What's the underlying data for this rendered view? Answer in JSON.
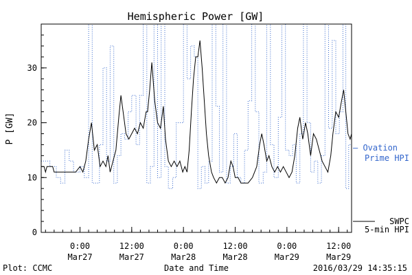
{
  "chart_data": {
    "type": "line",
    "title": "Hemispheric Power [GW]",
    "xlabel": "Date and Time",
    "ylabel": "P [GW]",
    "xlim": [
      "2016-03-26 15:00",
      "2016-03-29 15:00"
    ],
    "ylim": [
      0,
      38
    ],
    "yticks": [
      0,
      10,
      20,
      30
    ],
    "xticks": [
      {
        "time": "2016-03-27 00:00",
        "line1": "0:00",
        "line2": "Mar27"
      },
      {
        "time": "2016-03-27 12:00",
        "line1": "12:00",
        "line2": "Mar27"
      },
      {
        "time": "2016-03-28 00:00",
        "line1": "0:00",
        "line2": "Mar28"
      },
      {
        "time": "2016-03-28 12:00",
        "line1": "12:00",
        "line2": "Mar28"
      },
      {
        "time": "2016-03-29 00:00",
        "line1": "0:00",
        "line2": "Mar29"
      },
      {
        "time": "2016-03-29 12:00",
        "line1": "12:00",
        "line2": "Mar29"
      }
    ],
    "grid": false,
    "series": [
      {
        "name": "Ovation Prime HPI",
        "label_line1": "— Ovation",
        "label_line2": "Prime HPI",
        "style": "dotted-step",
        "color": "#3366cc",
        "points": [
          [
            "2016-03-26 15:00",
            13
          ],
          [
            "2016-03-26 17:00",
            12
          ],
          [
            "2016-03-26 18:30",
            10
          ],
          [
            "2016-03-26 19:30",
            9
          ],
          [
            "2016-03-26 20:30",
            15
          ],
          [
            "2016-03-26 21:30",
            13
          ],
          [
            "2016-03-26 22:30",
            11
          ],
          [
            "2016-03-27 00:00",
            12
          ],
          [
            "2016-03-27 01:00",
            10
          ],
          [
            "2016-03-27 02:00",
            38
          ],
          [
            "2016-03-27 02:50",
            9
          ],
          [
            "2016-03-27 04:30",
            16
          ],
          [
            "2016-03-27 05:20",
            30
          ],
          [
            "2016-03-27 06:10",
            13
          ],
          [
            "2016-03-27 07:00",
            34
          ],
          [
            "2016-03-27 07:50",
            9
          ],
          [
            "2016-03-27 08:40",
            14
          ],
          [
            "2016-03-27 09:30",
            18
          ],
          [
            "2016-03-27 10:20",
            17
          ],
          [
            "2016-03-27 11:10",
            22
          ],
          [
            "2016-03-27 12:00",
            25
          ],
          [
            "2016-03-27 13:00",
            16
          ],
          [
            "2016-03-27 13:50",
            25
          ],
          [
            "2016-03-27 14:40",
            38
          ],
          [
            "2016-03-27 15:30",
            9
          ],
          [
            "2016-03-27 16:20",
            12
          ],
          [
            "2016-03-27 17:10",
            38
          ],
          [
            "2016-03-27 18:00",
            10
          ],
          [
            "2016-03-27 18:50",
            38
          ],
          [
            "2016-03-27 19:40",
            12
          ],
          [
            "2016-03-27 20:30",
            8
          ],
          [
            "2016-03-27 21:30",
            10
          ],
          [
            "2016-03-27 22:20",
            20
          ],
          [
            "2016-03-28 00:00",
            38
          ],
          [
            "2016-03-28 00:50",
            28
          ],
          [
            "2016-03-28 01:40",
            34
          ],
          [
            "2016-03-28 02:30",
            32
          ],
          [
            "2016-03-28 03:20",
            8
          ],
          [
            "2016-03-28 04:10",
            12
          ],
          [
            "2016-03-28 05:00",
            9
          ],
          [
            "2016-03-28 05:50",
            13
          ],
          [
            "2016-03-28 06:40",
            38
          ],
          [
            "2016-03-28 07:30",
            23
          ],
          [
            "2016-03-28 08:20",
            11
          ],
          [
            "2016-03-28 09:10",
            38
          ],
          [
            "2016-03-28 10:00",
            9
          ],
          [
            "2016-03-28 10:50",
            12
          ],
          [
            "2016-03-28 11:40",
            18
          ],
          [
            "2016-03-28 12:30",
            10
          ],
          [
            "2016-03-28 13:20",
            9
          ],
          [
            "2016-03-28 14:10",
            15
          ],
          [
            "2016-03-28 15:00",
            24
          ],
          [
            "2016-03-28 15:50",
            38
          ],
          [
            "2016-03-28 16:40",
            22
          ],
          [
            "2016-03-28 17:30",
            9
          ],
          [
            "2016-03-28 18:30",
            11
          ],
          [
            "2016-03-28 19:20",
            38
          ],
          [
            "2016-03-28 20:10",
            16
          ],
          [
            "2016-03-28 21:00",
            10
          ],
          [
            "2016-03-28 22:00",
            21
          ],
          [
            "2016-03-28 22:50",
            38
          ],
          [
            "2016-03-28 23:40",
            15
          ],
          [
            "2016-03-29 00:30",
            14
          ],
          [
            "2016-03-29 01:20",
            16
          ],
          [
            "2016-03-29 02:10",
            9
          ],
          [
            "2016-03-29 03:00",
            18
          ],
          [
            "2016-03-29 03:50",
            38
          ],
          [
            "2016-03-29 04:40",
            20
          ],
          [
            "2016-03-29 05:30",
            11
          ],
          [
            "2016-03-29 06:20",
            13
          ],
          [
            "2016-03-29 07:10",
            9
          ],
          [
            "2016-03-29 08:00",
            14
          ],
          [
            "2016-03-29 08:50",
            38
          ],
          [
            "2016-03-29 09:40",
            19
          ],
          [
            "2016-03-29 10:30",
            35
          ],
          [
            "2016-03-29 11:20",
            18
          ],
          [
            "2016-03-29 12:10",
            22
          ],
          [
            "2016-03-29 13:00",
            38
          ],
          [
            "2016-03-29 13:40",
            8
          ],
          [
            "2016-03-29 14:20",
            16
          ],
          [
            "2016-03-29 15:00",
            16
          ]
        ]
      },
      {
        "name": "SWPC 5-min HPI",
        "label_line1": "SWPC",
        "label_line2": "5-min HPI",
        "style": "solid",
        "color": "#000000",
        "points": [
          [
            "2016-03-26 15:00",
            12
          ],
          [
            "2016-03-26 15:40",
            12
          ],
          [
            "2016-03-26 16:00",
            11
          ],
          [
            "2016-03-26 16:20",
            12
          ],
          [
            "2016-03-26 17:40",
            12
          ],
          [
            "2016-03-26 18:00",
            11
          ],
          [
            "2016-03-26 19:00",
            11
          ],
          [
            "2016-03-26 21:30",
            11
          ],
          [
            "2016-03-26 23:00",
            11
          ],
          [
            "2016-03-27 00:00",
            12
          ],
          [
            "2016-03-27 00:40",
            11
          ],
          [
            "2016-03-27 01:20",
            13
          ],
          [
            "2016-03-27 02:00",
            17
          ],
          [
            "2016-03-27 02:40",
            20
          ],
          [
            "2016-03-27 03:20",
            15
          ],
          [
            "2016-03-27 04:00",
            16
          ],
          [
            "2016-03-27 04:40",
            12
          ],
          [
            "2016-03-27 05:20",
            13
          ],
          [
            "2016-03-27 06:00",
            12
          ],
          [
            "2016-03-27 06:30",
            14
          ],
          [
            "2016-03-27 07:00",
            11
          ],
          [
            "2016-03-27 07:40",
            13
          ],
          [
            "2016-03-27 08:20",
            15
          ],
          [
            "2016-03-27 09:00",
            21
          ],
          [
            "2016-03-27 09:30",
            25
          ],
          [
            "2016-03-27 10:00",
            22
          ],
          [
            "2016-03-27 10:40",
            18
          ],
          [
            "2016-03-27 11:20",
            17
          ],
          [
            "2016-03-27 12:00",
            18
          ],
          [
            "2016-03-27 12:40",
            19
          ],
          [
            "2016-03-27 13:20",
            18
          ],
          [
            "2016-03-27 14:00",
            20
          ],
          [
            "2016-03-27 14:40",
            19
          ],
          [
            "2016-03-27 15:20",
            22
          ],
          [
            "2016-03-27 15:40",
            22
          ],
          [
            "2016-03-27 16:10",
            26
          ],
          [
            "2016-03-27 16:40",
            31
          ],
          [
            "2016-03-27 17:20",
            24
          ],
          [
            "2016-03-27 18:00",
            20
          ],
          [
            "2016-03-27 18:40",
            19
          ],
          [
            "2016-03-27 19:20",
            23
          ],
          [
            "2016-03-27 19:50",
            17
          ],
          [
            "2016-03-27 20:30",
            13
          ],
          [
            "2016-03-27 21:10",
            12
          ],
          [
            "2016-03-27 21:50",
            13
          ],
          [
            "2016-03-27 22:30",
            12
          ],
          [
            "2016-03-27 23:10",
            13
          ],
          [
            "2016-03-27 23:50",
            11
          ],
          [
            "2016-03-28 00:20",
            12
          ],
          [
            "2016-03-28 00:50",
            11
          ],
          [
            "2016-03-28 01:20",
            15
          ],
          [
            "2016-03-28 01:50",
            22
          ],
          [
            "2016-03-28 02:20",
            28
          ],
          [
            "2016-03-28 02:50",
            32
          ],
          [
            "2016-03-28 03:20",
            32
          ],
          [
            "2016-03-28 03:50",
            35
          ],
          [
            "2016-03-28 04:20",
            30
          ],
          [
            "2016-03-28 04:50",
            24
          ],
          [
            "2016-03-28 05:20",
            18
          ],
          [
            "2016-03-28 05:50",
            14
          ],
          [
            "2016-03-28 06:30",
            11
          ],
          [
            "2016-03-28 07:00",
            10
          ],
          [
            "2016-03-28 07:40",
            9
          ],
          [
            "2016-03-28 08:20",
            10
          ],
          [
            "2016-03-28 09:00",
            10
          ],
          [
            "2016-03-28 09:40",
            9
          ],
          [
            "2016-03-28 10:20",
            10
          ],
          [
            "2016-03-28 11:00",
            13
          ],
          [
            "2016-03-28 11:30",
            12
          ],
          [
            "2016-03-28 12:00",
            10
          ],
          [
            "2016-03-28 12:40",
            10
          ],
          [
            "2016-03-28 13:20",
            9
          ],
          [
            "2016-03-28 14:00",
            9
          ],
          [
            "2016-03-28 15:00",
            9
          ],
          [
            "2016-03-28 16:00",
            10
          ],
          [
            "2016-03-28 17:00",
            12
          ],
          [
            "2016-03-28 17:40",
            16
          ],
          [
            "2016-03-28 18:10",
            18
          ],
          [
            "2016-03-28 18:40",
            16
          ],
          [
            "2016-03-28 19:20",
            13
          ],
          [
            "2016-03-28 19:50",
            14
          ],
          [
            "2016-03-28 20:30",
            12
          ],
          [
            "2016-03-28 21:10",
            11
          ],
          [
            "2016-03-28 21:50",
            12
          ],
          [
            "2016-03-28 22:30",
            11
          ],
          [
            "2016-03-28 23:10",
            12
          ],
          [
            "2016-03-28 23:50",
            11
          ],
          [
            "2016-03-29 00:30",
            10
          ],
          [
            "2016-03-29 01:10",
            11
          ],
          [
            "2016-03-29 01:50",
            14
          ],
          [
            "2016-03-29 02:30",
            19
          ],
          [
            "2016-03-29 03:00",
            21
          ],
          [
            "2016-03-29 03:40",
            17
          ],
          [
            "2016-03-29 04:20",
            20
          ],
          [
            "2016-03-29 04:50",
            18
          ],
          [
            "2016-03-29 05:30",
            14
          ],
          [
            "2016-03-29 06:10",
            18
          ],
          [
            "2016-03-29 06:50",
            17
          ],
          [
            "2016-03-29 07:30",
            15
          ],
          [
            "2016-03-29 08:10",
            13
          ],
          [
            "2016-03-29 08:50",
            12
          ],
          [
            "2016-03-29 09:30",
            11
          ],
          [
            "2016-03-29 10:10",
            14
          ],
          [
            "2016-03-29 10:40",
            18
          ],
          [
            "2016-03-29 11:20",
            22
          ],
          [
            "2016-03-29 12:00",
            21
          ],
          [
            "2016-03-29 12:40",
            24
          ],
          [
            "2016-03-29 13:10",
            26
          ],
          [
            "2016-03-29 13:40",
            22
          ],
          [
            "2016-03-29 14:10",
            18
          ],
          [
            "2016-03-29 14:40",
            17
          ],
          [
            "2016-03-29 15:00",
            18
          ]
        ]
      }
    ]
  },
  "footer": {
    "plot_credit": "Plot: CCMC",
    "timestamp": "2016/03/29 14:35:15"
  }
}
